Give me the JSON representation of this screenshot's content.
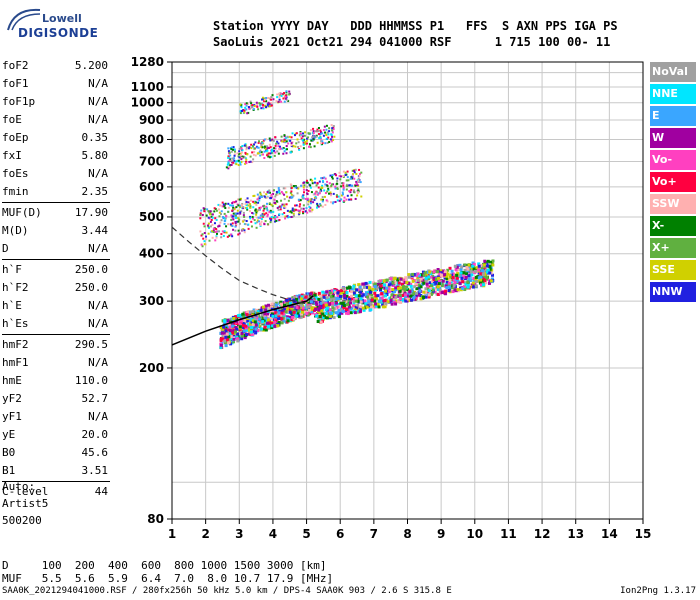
{
  "logo": {
    "line1": "Lowell",
    "line2": "DIGISONDE"
  },
  "header": {
    "line1": "Station YYYY DAY   DDD HHMMSS P1   FFS  S AXN PPS IGA PS",
    "line2": "SaoLuis 2021 Oct21 294 041000 RSF      1 715 100 00- 11"
  },
  "params": [
    {
      "name": "foF2",
      "value": "5.200"
    },
    {
      "name": "foF1",
      "value": "N/A"
    },
    {
      "name": "foF1p",
      "value": "N/A"
    },
    {
      "name": "foE",
      "value": "N/A"
    },
    {
      "name": "foEp",
      "value": "0.35"
    },
    {
      "name": "fxI",
      "value": "5.80"
    },
    {
      "name": "foEs",
      "value": "N/A"
    },
    {
      "name": "fmin",
      "value": "2.35"
    },
    {
      "name": "MUF(D)",
      "value": "17.90",
      "sep": true
    },
    {
      "name": "M(D)",
      "value": "3.44"
    },
    {
      "name": "D",
      "value": "N/A"
    },
    {
      "name": "h`F",
      "value": "250.0",
      "sep": true
    },
    {
      "name": "h`F2",
      "value": "250.0"
    },
    {
      "name": "h`E",
      "value": "N/A"
    },
    {
      "name": "h`Es",
      "value": "N/A"
    },
    {
      "name": "hmF2",
      "value": "290.5",
      "sep": true
    },
    {
      "name": "hmF1",
      "value": "N/A"
    },
    {
      "name": "hmE",
      "value": "110.0"
    },
    {
      "name": "yF2",
      "value": "52.7"
    },
    {
      "name": "yF1",
      "value": "N/A"
    },
    {
      "name": "yE",
      "value": "20.0"
    },
    {
      "name": "B0",
      "value": "45.6"
    },
    {
      "name": "B1",
      "value": "3.51"
    },
    {
      "name": "C-level",
      "value": "44",
      "sep": true
    }
  ],
  "auto": {
    "label": "Auto:",
    "artist": "Artist5",
    "version": "500200"
  },
  "muf_table": {
    "d_row": "D     100  200  400  600  800 1000 1500 3000 [km]",
    "muf_row": "MUF   5.5  5.6  5.9  6.4  7.0  8.0 10.7 17.9 [MHz]"
  },
  "footer": {
    "left": "SAA0K_2021294041000.RSF / 280fx256h 50 kHz 5.0 km / DPS-4 SAA0K 903 / 2.6 S 315.8 E",
    "right": "Ion2Png 1.3.17"
  },
  "legend": [
    {
      "label": "NoVal",
      "color": "#a0a0a0"
    },
    {
      "label": "NNE",
      "color": "#00e6ff"
    },
    {
      "label": "E",
      "color": "#3aa6ff"
    },
    {
      "label": "W",
      "color": "#a000a0"
    },
    {
      "label": "Vo-",
      "color": "#ff40c0"
    },
    {
      "label": "Vo+",
      "color": "#ff0040"
    },
    {
      "label": "SSW",
      "color": "#ffb0b0"
    },
    {
      "label": "X-",
      "color": "#008000"
    },
    {
      "label": "X+",
      "color": "#60b040"
    },
    {
      "label": "SSE",
      "color": "#d0d000"
    },
    {
      "label": "NNW",
      "color": "#2020e0"
    }
  ],
  "chart_data": {
    "type": "scatter",
    "xlim": [
      1,
      15
    ],
    "x_ticks": [
      1,
      2,
      3,
      4,
      5,
      6,
      7,
      8,
      9,
      10,
      11,
      12,
      13,
      14,
      15
    ],
    "y_scale": "log",
    "ylim": [
      80,
      1280
    ],
    "y_ticks": [
      80,
      200,
      300,
      400,
      500,
      600,
      700,
      800,
      900,
      1000,
      1100,
      1280
    ],
    "grid": true,
    "echo_clusters": [
      {
        "name": "o-trace F2",
        "f_range": [
          2.4,
          5.2
        ],
        "h_range": [
          240,
          330
        ]
      },
      {
        "name": "x-trace F2",
        "f_range": [
          5.2,
          10.5
        ],
        "h_range": [
          280,
          400
        ]
      },
      {
        "name": "2nd hop",
        "f_range": [
          1.8,
          6.6
        ],
        "h_range": [
          450,
          700
        ]
      },
      {
        "name": "3rd hop",
        "f_range": [
          2.6,
          5.8
        ],
        "h_range": [
          700,
          900
        ]
      },
      {
        "name": "4th hop",
        "f_range": [
          3.0,
          4.5
        ],
        "h_range": [
          950,
          1100
        ]
      }
    ],
    "profile_line": [
      [
        1,
        230
      ],
      [
        2,
        250
      ],
      [
        3,
        268
      ],
      [
        4,
        285
      ],
      [
        5,
        300
      ],
      [
        5.2,
        310
      ]
    ],
    "profile_dashed": [
      [
        1,
        470
      ],
      [
        1.5,
        430
      ],
      [
        2,
        395
      ],
      [
        2.5,
        365
      ],
      [
        3,
        340
      ],
      [
        3.5,
        325
      ],
      [
        4,
        312
      ],
      [
        4.5,
        302
      ],
      [
        5,
        295
      ]
    ]
  }
}
